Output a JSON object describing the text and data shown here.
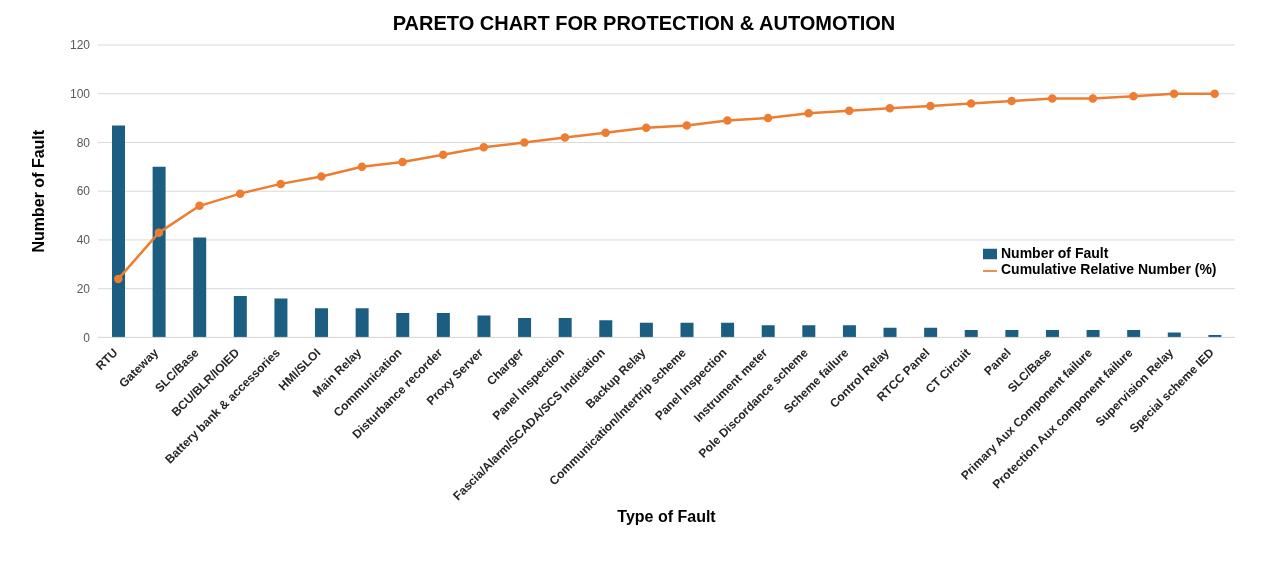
{
  "chart_data": {
    "type": "bar",
    "title": "PARETO CHART FOR PROTECTION & AUTOMOTION",
    "xlabel": "Type of Fault",
    "ylabel": "Number of Fault",
    "categories": [
      "RTU",
      "Gateway",
      "SLC/Base",
      "BCU/BLR/IOIED",
      "Battery bank & accessories",
      "HMI/SLOI",
      "Main Relay",
      "Communication",
      "Disturbance recorder",
      "Proxy Server",
      "Charger",
      "Panel Inspection",
      "Fascia/Alarm/SCADA/SCS Indication",
      "Backup Relay",
      "Communication/Intertrip scheme",
      "Panel Inspection",
      "Instrument meter",
      "Pole Discordance scheme",
      "Scheme failure",
      "Control Relay",
      "RTCC Panel",
      "CT Circuit",
      "Panel",
      "SLC/Base",
      "Primary Aux Component failure",
      "Protection Aux component failure",
      "Supervision Relay",
      "Special scheme IED"
    ],
    "series": [
      {
        "name": "Number of Fault",
        "color": "#1b5e82",
        "values": [
          87,
          70,
          41,
          17,
          16,
          12,
          12,
          10,
          10,
          9,
          8,
          8,
          7,
          6,
          6,
          6,
          5,
          5,
          5,
          4,
          4,
          3,
          3,
          3,
          3,
          3,
          2,
          1
        ]
      },
      {
        "name": "Cumulative Relative Number (%)",
        "type": "line",
        "color": "#ed7d31",
        "marker": "circle",
        "values": [
          24,
          43,
          54,
          59,
          63,
          66,
          70,
          72,
          75,
          78,
          80,
          82,
          84,
          86,
          87,
          89,
          90,
          92,
          93,
          94,
          95,
          96,
          97,
          98,
          98,
          99,
          100,
          100
        ]
      }
    ],
    "ylim": [
      0,
      120
    ],
    "yticks": [
      0,
      20,
      40,
      60,
      80,
      100,
      120
    ],
    "grid": "y",
    "legend": "right"
  }
}
